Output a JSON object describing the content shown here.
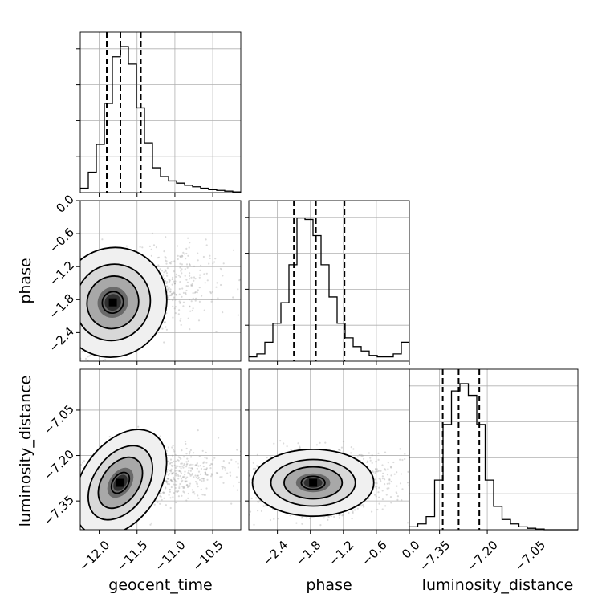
{
  "chart_data": {
    "type": "corner",
    "parameters": [
      "geocent_time",
      "phase",
      "luminosity_distance"
    ],
    "axis_labels": {
      "geocent_time": "geocent_time",
      "phase": "phase",
      "luminosity_distance": "luminosity_distance"
    },
    "ranges": {
      "geocent_time": [
        -12.25,
        -10.13
      ],
      "phase": [
        -2.92,
        0.0
      ],
      "luminosity_distance": [
        -7.445,
        -6.915
      ]
    },
    "ticks": {
      "geocent_time": {
        "values": [
          -12.0,
          -11.5,
          -11.0,
          -10.5
        ],
        "labels": [
          "−12.0",
          "−11.5",
          "−11.0",
          "−10.5"
        ]
      },
      "phase": {
        "values": [
          -2.4,
          -1.8,
          -1.2,
          -0.6,
          0.0
        ],
        "labels": [
          "−2.4",
          "−1.8",
          "−1.2",
          "−0.6",
          "0.0"
        ]
      },
      "luminosity_distance": {
        "values": [
          -7.35,
          -7.2,
          -7.05
        ],
        "labels": [
          "−7.35",
          "−7.20",
          "−7.05"
        ]
      }
    },
    "grid": true,
    "histograms": {
      "geocent_time": {
        "range": [
          -12.25,
          -10.13
        ],
        "counts": [
          0.03,
          0.14,
          0.33,
          0.61,
          0.93,
          1.0,
          0.88,
          0.58,
          0.34,
          0.17,
          0.11,
          0.08,
          0.065,
          0.05,
          0.04,
          0.03,
          0.02,
          0.015,
          0.01,
          0.005
        ]
      },
      "phase": {
        "range": [
          -2.92,
          0.0
        ],
        "counts": [
          0.03,
          0.05,
          0.13,
          0.26,
          0.4,
          0.66,
          0.98,
          0.97,
          0.86,
          0.66,
          0.44,
          0.26,
          0.16,
          0.1,
          0.07,
          0.04,
          0.03,
          0.03,
          0.05,
          0.13
        ]
      },
      "luminosity_distance": {
        "range": [
          -7.445,
          -6.915
        ],
        "counts": [
          0.02,
          0.04,
          0.09,
          0.34,
          0.72,
          0.95,
          1.0,
          0.92,
          0.72,
          0.34,
          0.16,
          0.07,
          0.04,
          0.02,
          0.01,
          0.005,
          0.0,
          0.0,
          0.0,
          0.0
        ]
      }
    },
    "quantiles": {
      "geocent_time": [
        -11.9,
        -11.72,
        -11.45
      ],
      "phase": [
        -2.1,
        -1.7,
        -1.18
      ],
      "luminosity_distance": [
        -7.34,
        -7.29,
        -7.225
      ]
    },
    "density_peaks": {
      "phase_vs_geocent_time": {
        "x": -11.82,
        "y": -1.85
      },
      "luminosity_distance_vs_geocent_time": {
        "x": -11.72,
        "y": -7.29
      },
      "luminosity_distance_vs_phase": {
        "x": -1.75,
        "y": -7.29
      }
    },
    "colors": {
      "lines": "#000000",
      "grid": "#b0b0b0",
      "points": "#999999"
    }
  }
}
